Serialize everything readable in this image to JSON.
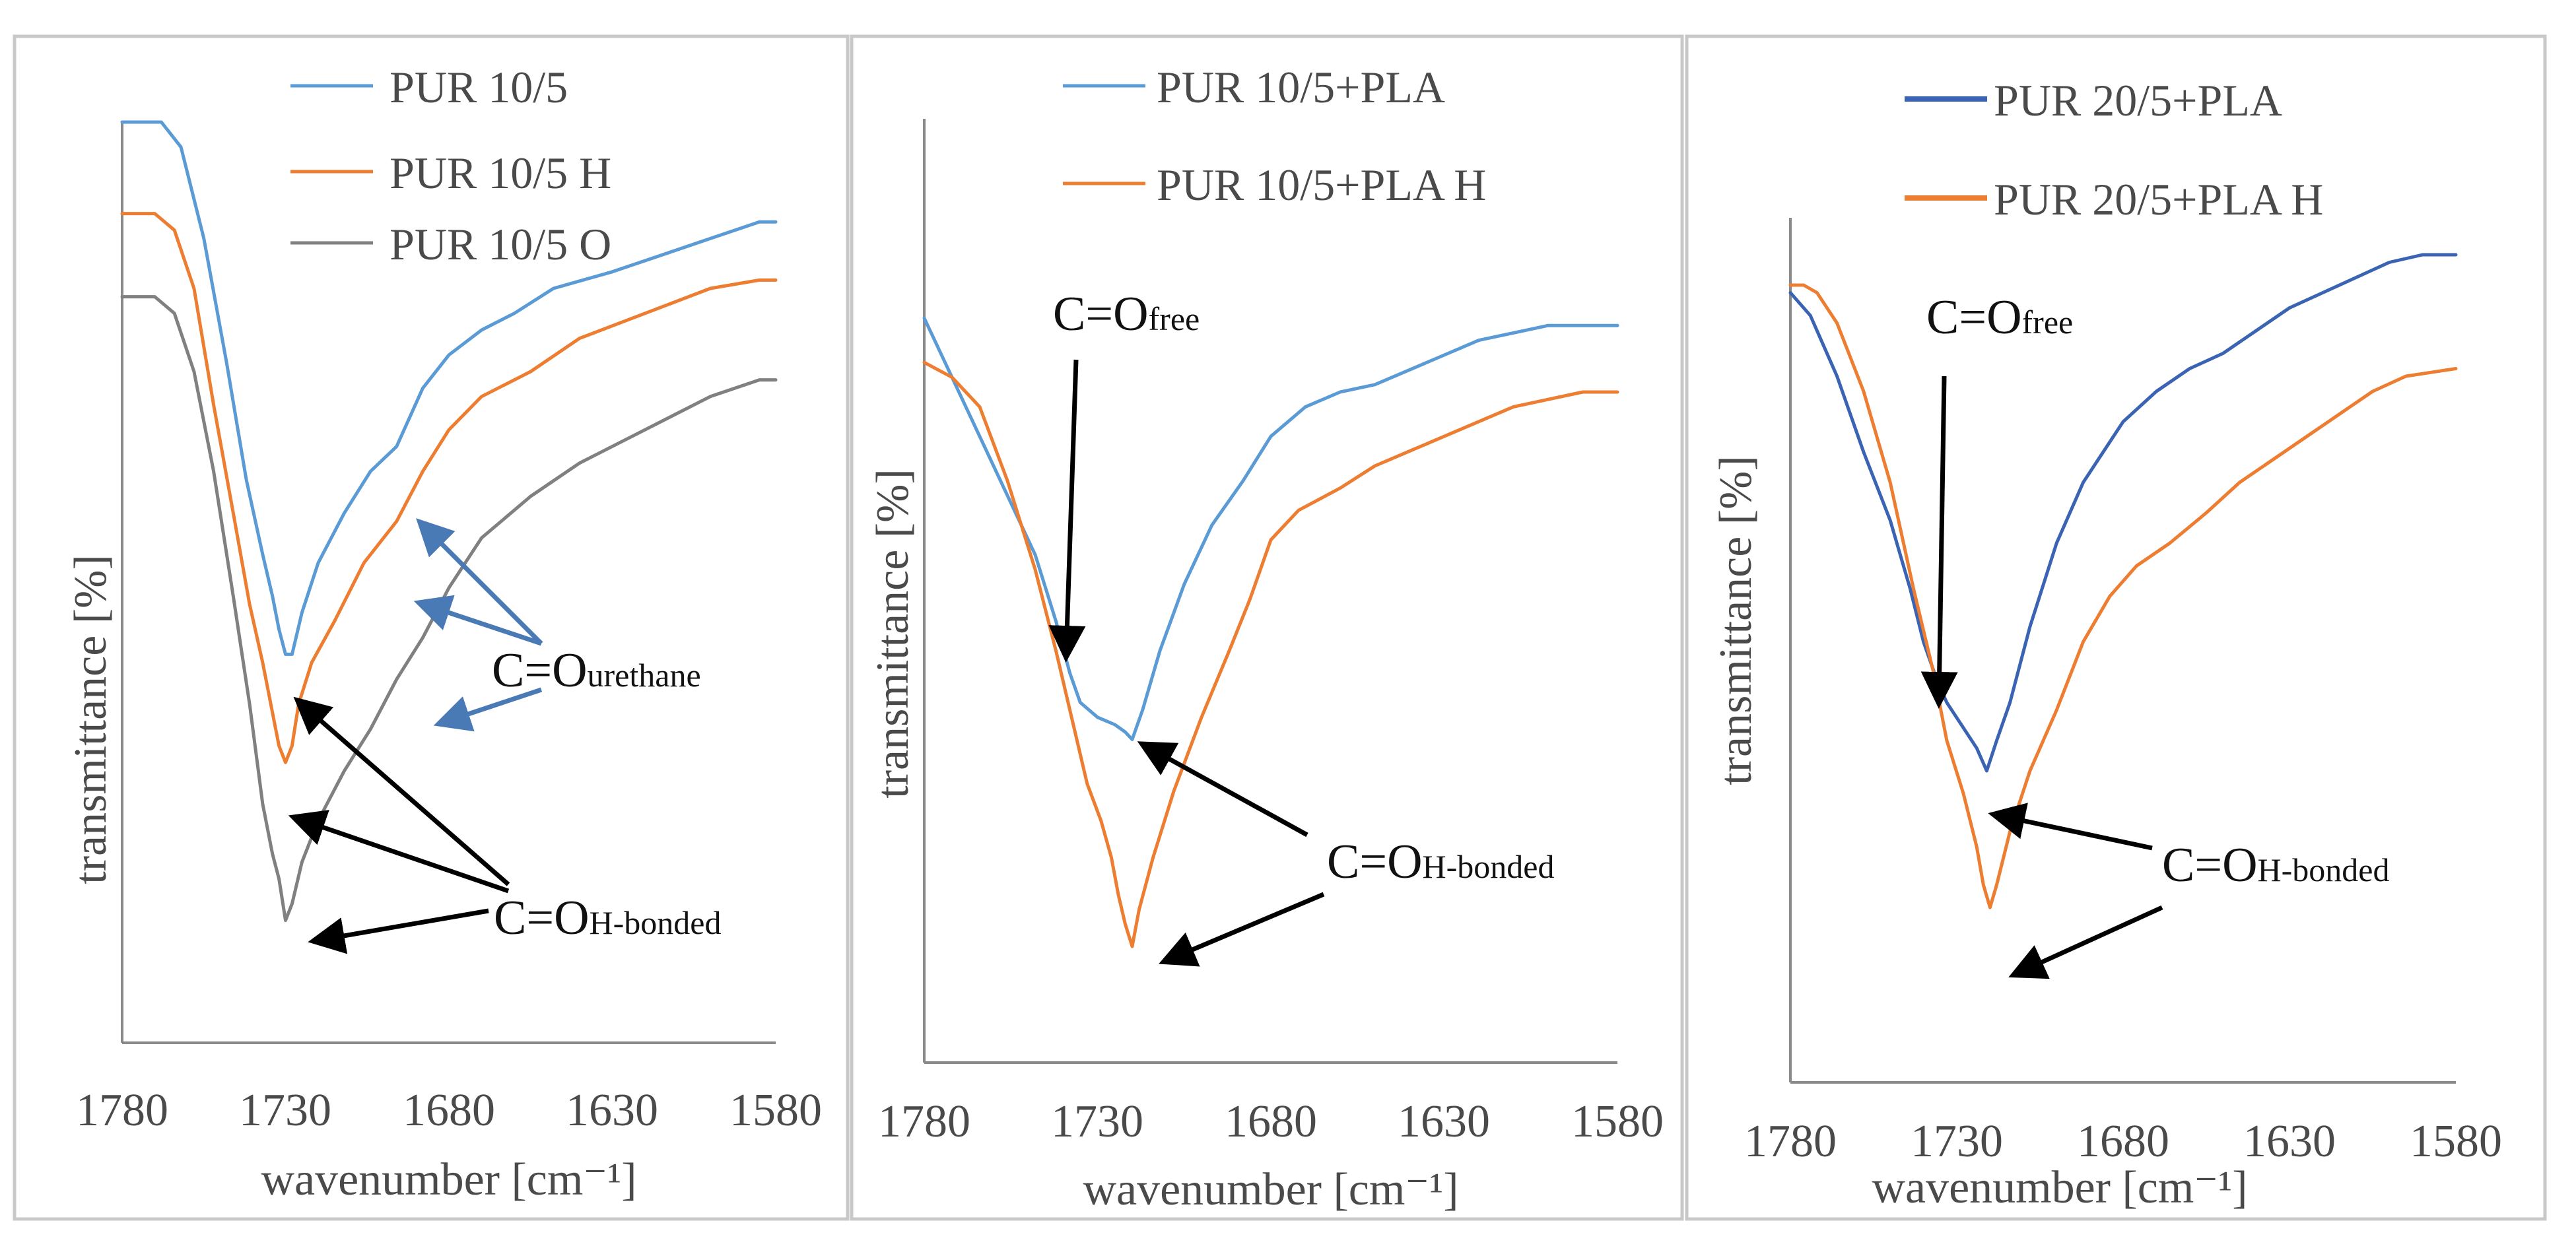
{
  "colors": {
    "blue": "#5b9bd5",
    "orange": "#ed7d31",
    "gray": "#808080",
    "darkblue": "#3a64b3",
    "arrow_black": "#000000",
    "arrow_blue": "#4a7ab5"
  },
  "chart_data": [
    {
      "type": "line",
      "xlabel": "wavenumber [cm⁻¹]",
      "ylabel": "transmittance [%]",
      "xlim": [
        1780,
        1580
      ],
      "ylim": [
        0,
        100
      ],
      "xticks": [
        "1780",
        "1730",
        "1680",
        "1630",
        "1580"
      ],
      "series": [
        {
          "name": "PUR 10/5",
          "color": "#5b9bd5",
          "width": 5,
          "points": [
            [
              1780,
              100
            ],
            [
              1768,
              100
            ],
            [
              1762,
              97
            ],
            [
              1755,
              86
            ],
            [
              1748,
              71
            ],
            [
              1742,
              57
            ],
            [
              1737,
              48
            ],
            [
              1734,
              43
            ],
            [
              1732,
              39
            ],
            [
              1730,
              36
            ],
            [
              1728,
              36
            ],
            [
              1725,
              41
            ],
            [
              1720,
              47
            ],
            [
              1712,
              53
            ],
            [
              1704,
              58
            ],
            [
              1696,
              61
            ],
            [
              1688,
              68
            ],
            [
              1680,
              72
            ],
            [
              1670,
              75
            ],
            [
              1660,
              77
            ],
            [
              1648,
              80
            ],
            [
              1630,
              82
            ],
            [
              1615,
              84
            ],
            [
              1600,
              86
            ],
            [
              1585,
              88
            ],
            [
              1580,
              88
            ]
          ]
        },
        {
          "name": "PUR 10/5 H",
          "color": "#ed7d31",
          "width": 5,
          "points": [
            [
              1780,
              89
            ],
            [
              1770,
              89
            ],
            [
              1764,
              87
            ],
            [
              1758,
              80
            ],
            [
              1752,
              66
            ],
            [
              1746,
              53
            ],
            [
              1741,
              42
            ],
            [
              1737,
              35
            ],
            [
              1734,
              29
            ],
            [
              1732,
              25
            ],
            [
              1730,
              23
            ],
            [
              1728,
              25
            ],
            [
              1726,
              30
            ],
            [
              1722,
              35
            ],
            [
              1715,
              40
            ],
            [
              1706,
              47
            ],
            [
              1696,
              52
            ],
            [
              1688,
              58
            ],
            [
              1680,
              63
            ],
            [
              1670,
              67
            ],
            [
              1655,
              70
            ],
            [
              1640,
              74
            ],
            [
              1620,
              77
            ],
            [
              1600,
              80
            ],
            [
              1585,
              81
            ],
            [
              1580,
              81
            ]
          ]
        },
        {
          "name": "PUR 10/5 O",
          "color": "#808080",
          "width": 5,
          "points": [
            [
              1780,
              79
            ],
            [
              1770,
              79
            ],
            [
              1764,
              77
            ],
            [
              1758,
              70
            ],
            [
              1752,
              58
            ],
            [
              1746,
              43
            ],
            [
              1741,
              30
            ],
            [
              1737,
              18
            ],
            [
              1734,
              12
            ],
            [
              1732,
              9
            ],
            [
              1730,
              4
            ],
            [
              1728,
              6
            ],
            [
              1725,
              11
            ],
            [
              1720,
              16
            ],
            [
              1712,
              22
            ],
            [
              1704,
              27
            ],
            [
              1696,
              33
            ],
            [
              1688,
              38
            ],
            [
              1680,
              44
            ],
            [
              1670,
              50
            ],
            [
              1655,
              55
            ],
            [
              1640,
              59
            ],
            [
              1620,
              63
            ],
            [
              1600,
              67
            ],
            [
              1585,
              69
            ],
            [
              1580,
              69
            ]
          ]
        }
      ],
      "legend": [
        "PUR 10/5",
        "PUR 10/5 H",
        "PUR 10/5 O"
      ],
      "annotations": [
        {
          "main": "C=O",
          "sub": "urethane"
        },
        {
          "main": "C=O",
          "sub": "H-bonded"
        }
      ]
    },
    {
      "type": "line",
      "xlabel": "wavenumber [cm⁻¹]",
      "ylabel": "transmittance [%]",
      "xlim": [
        1780,
        1580
      ],
      "ylim": [
        0,
        100
      ],
      "xticks": [
        "1780",
        "1730",
        "1680",
        "1630",
        "1580"
      ],
      "series": [
        {
          "name": "PUR 10/5+PLA",
          "color": "#5b9bd5",
          "width": 5,
          "points": [
            [
              1780,
              90
            ],
            [
              1774,
              84
            ],
            [
              1766,
              76
            ],
            [
              1756,
              66
            ],
            [
              1748,
              58
            ],
            [
              1742,
              49
            ],
            [
              1738,
              42
            ],
            [
              1735,
              38
            ],
            [
              1730,
              36
            ],
            [
              1725,
              35
            ],
            [
              1722,
              34
            ],
            [
              1720,
              33
            ],
            [
              1717,
              37
            ],
            [
              1712,
              45
            ],
            [
              1705,
              54
            ],
            [
              1697,
              62
            ],
            [
              1688,
              68
            ],
            [
              1680,
              74
            ],
            [
              1670,
              78
            ],
            [
              1660,
              80
            ],
            [
              1650,
              81
            ],
            [
              1640,
              83
            ],
            [
              1630,
              85
            ],
            [
              1620,
              87
            ],
            [
              1610,
              88
            ],
            [
              1600,
              89
            ],
            [
              1590,
              89
            ],
            [
              1580,
              89
            ]
          ]
        },
        {
          "name": "PUR 10/5+PLA H",
          "color": "#ed7d31",
          "width": 5,
          "points": [
            [
              1780,
              84
            ],
            [
              1772,
              82
            ],
            [
              1764,
              78
            ],
            [
              1756,
              68
            ],
            [
              1748,
              56
            ],
            [
              1742,
              45
            ],
            [
              1737,
              35
            ],
            [
              1733,
              27
            ],
            [
              1729,
              22
            ],
            [
              1726,
              17
            ],
            [
              1724,
              12
            ],
            [
              1722,
              8
            ],
            [
              1720,
              5
            ],
            [
              1718,
              10
            ],
            [
              1714,
              17
            ],
            [
              1708,
              26
            ],
            [
              1700,
              36
            ],
            [
              1692,
              45
            ],
            [
              1686,
              52
            ],
            [
              1680,
              60
            ],
            [
              1672,
              64
            ],
            [
              1660,
              67
            ],
            [
              1650,
              70
            ],
            [
              1640,
              72
            ],
            [
              1630,
              74
            ],
            [
              1620,
              76
            ],
            [
              1610,
              78
            ],
            [
              1600,
              79
            ],
            [
              1590,
              80
            ],
            [
              1580,
              80
            ]
          ]
        }
      ],
      "legend": [
        "PUR 10/5+PLA",
        "PUR 10/5+PLA H"
      ],
      "annotations": [
        {
          "main": "C=O",
          "sub": "free"
        },
        {
          "main": "C=O",
          "sub": "H-bonded"
        }
      ]
    },
    {
      "type": "line",
      "xlabel": "wavenumber [cm⁻¹]",
      "ylabel": "transmittance [%]",
      "xlim": [
        1780,
        1580
      ],
      "ylim": [
        0,
        100
      ],
      "xticks": [
        "1780",
        "1730",
        "1680",
        "1630",
        "1580"
      ],
      "series": [
        {
          "name": "PUR 20/5+PLA",
          "color": "#3a64b3",
          "width": 8,
          "points": [
            [
              1780,
              91
            ],
            [
              1774,
              88
            ],
            [
              1766,
              80
            ],
            [
              1758,
              70
            ],
            [
              1750,
              61
            ],
            [
              1744,
              52
            ],
            [
              1740,
              45
            ],
            [
              1736,
              40
            ],
            [
              1733,
              37
            ],
            [
              1730,
              35
            ],
            [
              1727,
              33
            ],
            [
              1724,
              31
            ],
            [
              1721,
              28
            ],
            [
              1718,
              32
            ],
            [
              1714,
              37
            ],
            [
              1708,
              47
            ],
            [
              1700,
              58
            ],
            [
              1692,
              66
            ],
            [
              1680,
              74
            ],
            [
              1670,
              78
            ],
            [
              1660,
              81
            ],
            [
              1650,
              83
            ],
            [
              1640,
              86
            ],
            [
              1630,
              89
            ],
            [
              1620,
              91
            ],
            [
              1610,
              93
            ],
            [
              1600,
              95
            ],
            [
              1590,
              96
            ],
            [
              1580,
              96
            ]
          ]
        },
        {
          "name": "PUR 20/5+PLA H",
          "color": "#ed7d31",
          "width": 8,
          "points": [
            [
              1780,
              92
            ],
            [
              1776,
              92
            ],
            [
              1772,
              91
            ],
            [
              1766,
              87
            ],
            [
              1758,
              78
            ],
            [
              1750,
              66
            ],
            [
              1743,
              52
            ],
            [
              1737,
              41
            ],
            [
              1733,
              32
            ],
            [
              1728,
              25
            ],
            [
              1724,
              18
            ],
            [
              1722,
              13
            ],
            [
              1720,
              10
            ],
            [
              1718,
              13
            ],
            [
              1714,
              20
            ],
            [
              1708,
              28
            ],
            [
              1700,
              36
            ],
            [
              1692,
              45
            ],
            [
              1684,
              51
            ],
            [
              1676,
              55
            ],
            [
              1666,
              58
            ],
            [
              1655,
              62
            ],
            [
              1645,
              66
            ],
            [
              1635,
              69
            ],
            [
              1625,
              72
            ],
            [
              1615,
              75
            ],
            [
              1605,
              78
            ],
            [
              1595,
              80
            ],
            [
              1580,
              81
            ]
          ]
        }
      ],
      "legend": [
        "PUR 20/5+PLA",
        "PUR 20/5+PLA H"
      ],
      "annotations": [
        {
          "main": "C=O",
          "sub": "free"
        },
        {
          "main": "C=O",
          "sub": "H-bonded"
        }
      ]
    }
  ]
}
